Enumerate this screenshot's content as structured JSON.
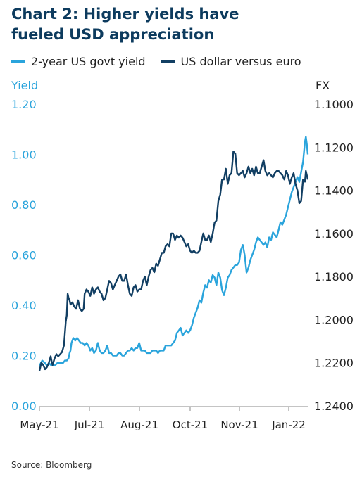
{
  "title_line1": "Chart 2: Higher yields have",
  "title_line2": "fueled USD appreciation",
  "source": "Source: Bloomberg",
  "colors": {
    "yield": "#2aa4dc",
    "fx": "#123f63",
    "title": "#0d3b5e"
  },
  "chart_data": {
    "type": "line",
    "left_axis_label": "Yield",
    "right_axis_label": "FX",
    "left_ticks": [
      "1.20",
      "1.00",
      "0.80",
      "0.60",
      "0.40",
      "0.20",
      "0.00"
    ],
    "right_ticks": [
      "1.1000",
      "1.1200",
      "1.1400",
      "1.1600",
      "1.1800",
      "1.2000",
      "1.2200",
      "1.2400"
    ],
    "x_ticks": [
      "May-21",
      "Jul-21",
      "Aug-21",
      "Oct-21",
      "Nov-21",
      "Jan-22"
    ],
    "ylim_left": [
      0,
      1.2
    ],
    "ylim_right_inverted": [
      1.24,
      1.1
    ],
    "series": [
      {
        "name": "2-year US govt yield",
        "axis": "left",
        "color": "#2aa4dc",
        "points": [
          [
            0,
            0.16
          ],
          [
            3,
            0.18
          ],
          [
            6,
            0.17
          ],
          [
            8,
            0.16
          ],
          [
            10,
            0.17
          ],
          [
            13,
            0.16
          ],
          [
            16,
            0.16
          ],
          [
            19,
            0.17
          ],
          [
            21,
            0.17
          ],
          [
            23,
            0.17
          ],
          [
            25,
            0.17
          ],
          [
            27,
            0.18
          ],
          [
            29,
            0.18
          ],
          [
            31,
            0.19
          ],
          [
            32,
            0.21
          ],
          [
            33,
            0.22
          ],
          [
            34,
            0.25
          ],
          [
            36,
            0.27
          ],
          [
            38,
            0.26
          ],
          [
            40,
            0.27
          ],
          [
            42,
            0.26
          ],
          [
            44,
            0.25
          ],
          [
            46,
            0.25
          ],
          [
            48,
            0.24
          ],
          [
            50,
            0.25
          ],
          [
            52,
            0.24
          ],
          [
            54,
            0.22
          ],
          [
            56,
            0.23
          ],
          [
            58,
            0.21
          ],
          [
            60,
            0.22
          ],
          [
            62,
            0.25
          ],
          [
            64,
            0.22
          ],
          [
            66,
            0.21
          ],
          [
            68,
            0.21
          ],
          [
            70,
            0.22
          ],
          [
            72,
            0.24
          ],
          [
            74,
            0.21
          ],
          [
            76,
            0.21
          ],
          [
            78,
            0.2
          ],
          [
            80,
            0.2
          ],
          [
            82,
            0.2
          ],
          [
            84,
            0.21
          ],
          [
            86,
            0.21
          ],
          [
            88,
            0.2
          ],
          [
            90,
            0.2
          ],
          [
            92,
            0.21
          ],
          [
            94,
            0.22
          ],
          [
            96,
            0.22
          ],
          [
            98,
            0.23
          ],
          [
            100,
            0.22
          ],
          [
            102,
            0.23
          ],
          [
            104,
            0.23
          ],
          [
            106,
            0.25
          ],
          [
            108,
            0.22
          ],
          [
            110,
            0.22
          ],
          [
            112,
            0.22
          ],
          [
            114,
            0.21
          ],
          [
            116,
            0.21
          ],
          [
            118,
            0.21
          ],
          [
            120,
            0.22
          ],
          [
            122,
            0.22
          ],
          [
            124,
            0.22
          ],
          [
            126,
            0.21
          ],
          [
            128,
            0.22
          ],
          [
            130,
            0.22
          ],
          [
            132,
            0.22
          ],
          [
            134,
            0.24
          ],
          [
            136,
            0.24
          ],
          [
            138,
            0.24
          ],
          [
            140,
            0.24
          ],
          [
            142,
            0.25
          ],
          [
            144,
            0.26
          ],
          [
            146,
            0.29
          ],
          [
            148,
            0.3
          ],
          [
            150,
            0.31
          ],
          [
            152,
            0.28
          ],
          [
            154,
            0.29
          ],
          [
            156,
            0.3
          ],
          [
            158,
            0.29
          ],
          [
            160,
            0.3
          ],
          [
            162,
            0.32
          ],
          [
            164,
            0.35
          ],
          [
            166,
            0.37
          ],
          [
            168,
            0.39
          ],
          [
            170,
            0.42
          ],
          [
            172,
            0.41
          ],
          [
            174,
            0.45
          ],
          [
            176,
            0.48
          ],
          [
            178,
            0.47
          ],
          [
            180,
            0.5
          ],
          [
            182,
            0.49
          ],
          [
            184,
            0.52
          ],
          [
            186,
            0.51
          ],
          [
            188,
            0.48
          ],
          [
            190,
            0.53
          ],
          [
            192,
            0.51
          ],
          [
            194,
            0.46
          ],
          [
            196,
            0.44
          ],
          [
            198,
            0.47
          ],
          [
            200,
            0.51
          ],
          [
            202,
            0.52
          ],
          [
            204,
            0.54
          ],
          [
            206,
            0.55
          ],
          [
            208,
            0.56
          ],
          [
            210,
            0.56
          ],
          [
            212,
            0.57
          ],
          [
            214,
            0.62
          ],
          [
            216,
            0.64
          ],
          [
            218,
            0.6
          ],
          [
            220,
            0.53
          ],
          [
            222,
            0.55
          ],
          [
            224,
            0.58
          ],
          [
            226,
            0.6
          ],
          [
            228,
            0.62
          ],
          [
            230,
            0.65
          ],
          [
            232,
            0.67
          ],
          [
            234,
            0.66
          ],
          [
            236,
            0.65
          ],
          [
            238,
            0.64
          ],
          [
            240,
            0.65
          ],
          [
            242,
            0.63
          ],
          [
            244,
            0.67
          ],
          [
            246,
            0.66
          ],
          [
            248,
            0.69
          ],
          [
            250,
            0.68
          ],
          [
            252,
            0.67
          ],
          [
            254,
            0.7
          ],
          [
            256,
            0.73
          ],
          [
            258,
            0.72
          ],
          [
            260,
            0.74
          ],
          [
            262,
            0.76
          ],
          [
            264,
            0.79
          ],
          [
            266,
            0.82
          ],
          [
            268,
            0.85
          ],
          [
            270,
            0.87
          ],
          [
            272,
            0.89
          ],
          [
            274,
            0.91
          ],
          [
            276,
            0.89
          ],
          [
            278,
            0.93
          ],
          [
            280,
            0.97
          ],
          [
            282,
            1.05
          ],
          [
            283,
            1.07
          ],
          [
            284,
            1.04
          ],
          [
            285,
            1.0
          ]
        ]
      },
      {
        "name": "US dollar versus euro",
        "axis": "right",
        "color": "#123f63",
        "points": [
          [
            0,
            1.2238
          ],
          [
            2,
            1.22
          ],
          [
            4,
            1.221
          ],
          [
            6,
            1.223
          ],
          [
            8,
            1.222
          ],
          [
            10,
            1.22
          ],
          [
            12,
            1.217
          ],
          [
            13,
            1.2195
          ],
          [
            14,
            1.221
          ],
          [
            16,
            1.218
          ],
          [
            18,
            1.216
          ],
          [
            20,
            1.217
          ],
          [
            22,
            1.216
          ],
          [
            24,
            1.215
          ],
          [
            26,
            1.212
          ],
          [
            28,
            1.201
          ],
          [
            29,
            1.198
          ],
          [
            30,
            1.188
          ],
          [
            31,
            1.19
          ],
          [
            32,
            1.191
          ],
          [
            33,
            1.193
          ],
          [
            35,
            1.192
          ],
          [
            37,
            1.194
          ],
          [
            39,
            1.195
          ],
          [
            41,
            1.191
          ],
          [
            43,
            1.195
          ],
          [
            45,
            1.196
          ],
          [
            47,
            1.195
          ],
          [
            48,
            1.188
          ],
          [
            50,
            1.186
          ],
          [
            52,
            1.187
          ],
          [
            54,
            1.189
          ],
          [
            56,
            1.185
          ],
          [
            58,
            1.188
          ],
          [
            60,
            1.186
          ],
          [
            62,
            1.185
          ],
          [
            64,
            1.187
          ],
          [
            66,
            1.188
          ],
          [
            68,
            1.191
          ],
          [
            70,
            1.19
          ],
          [
            72,
            1.186
          ],
          [
            74,
            1.182
          ],
          [
            76,
            1.183
          ],
          [
            78,
            1.186
          ],
          [
            80,
            1.184
          ],
          [
            82,
            1.182
          ],
          [
            84,
            1.18
          ],
          [
            86,
            1.179
          ],
          [
            88,
            1.182
          ],
          [
            90,
            1.182
          ],
          [
            92,
            1.179
          ],
          [
            94,
            1.184
          ],
          [
            96,
            1.188
          ],
          [
            98,
            1.189
          ],
          [
            100,
            1.185
          ],
          [
            102,
            1.184
          ],
          [
            104,
            1.187
          ],
          [
            106,
            1.186
          ],
          [
            108,
            1.186
          ],
          [
            110,
            1.182
          ],
          [
            112,
            1.18
          ],
          [
            114,
            1.184
          ],
          [
            116,
            1.18
          ],
          [
            118,
            1.177
          ],
          [
            120,
            1.176
          ],
          [
            122,
            1.178
          ],
          [
            124,
            1.174
          ],
          [
            126,
            1.175
          ],
          [
            128,
            1.172
          ],
          [
            130,
            1.169
          ],
          [
            132,
            1.169
          ],
          [
            134,
            1.166
          ],
          [
            136,
            1.165
          ],
          [
            138,
            1.166
          ],
          [
            140,
            1.16
          ],
          [
            142,
            1.16
          ],
          [
            144,
            1.163
          ],
          [
            146,
            1.161
          ],
          [
            148,
            1.162
          ],
          [
            150,
            1.161
          ],
          [
            152,
            1.162
          ],
          [
            154,
            1.164
          ],
          [
            156,
            1.166
          ],
          [
            158,
            1.165
          ],
          [
            160,
            1.168
          ],
          [
            162,
            1.169
          ],
          [
            164,
            1.168
          ],
          [
            166,
            1.169
          ],
          [
            168,
            1.169
          ],
          [
            170,
            1.168
          ],
          [
            172,
            1.164
          ],
          [
            174,
            1.16
          ],
          [
            176,
            1.163
          ],
          [
            178,
            1.163
          ],
          [
            180,
            1.161
          ],
          [
            182,
            1.164
          ],
          [
            184,
            1.16
          ],
          [
            186,
            1.155
          ],
          [
            188,
            1.154
          ],
          [
            190,
            1.145
          ],
          [
            192,
            1.142
          ],
          [
            194,
            1.135
          ],
          [
            196,
            1.135
          ],
          [
            198,
            1.13
          ],
          [
            200,
            1.137
          ],
          [
            202,
            1.133
          ],
          [
            204,
            1.132
          ],
          [
            206,
            1.122
          ],
          [
            208,
            1.123
          ],
          [
            210,
            1.132
          ],
          [
            212,
            1.133
          ],
          [
            214,
            1.132
          ],
          [
            216,
            1.131
          ],
          [
            218,
            1.134
          ],
          [
            220,
            1.132
          ],
          [
            222,
            1.129
          ],
          [
            224,
            1.132
          ],
          [
            226,
            1.13
          ],
          [
            228,
            1.133
          ],
          [
            230,
            1.129
          ],
          [
            232,
            1.132
          ],
          [
            234,
            1.132
          ],
          [
            236,
            1.129
          ],
          [
            238,
            1.126
          ],
          [
            240,
            1.131
          ],
          [
            242,
            1.133
          ],
          [
            244,
            1.132
          ],
          [
            246,
            1.133
          ],
          [
            248,
            1.134
          ],
          [
            250,
            1.132
          ],
          [
            252,
            1.131
          ],
          [
            254,
            1.131
          ],
          [
            256,
            1.132
          ],
          [
            258,
            1.133
          ],
          [
            260,
            1.135
          ],
          [
            262,
            1.131
          ],
          [
            264,
            1.133
          ],
          [
            266,
            1.137
          ],
          [
            268,
            1.134
          ],
          [
            270,
            1.132
          ],
          [
            272,
            1.137
          ],
          [
            274,
            1.14
          ],
          [
            276,
            1.146
          ],
          [
            278,
            1.145
          ],
          [
            280,
            1.135
          ],
          [
            282,
            1.136
          ],
          [
            283,
            1.131
          ],
          [
            284,
            1.133
          ],
          [
            285,
            1.135
          ]
        ]
      }
    ]
  }
}
